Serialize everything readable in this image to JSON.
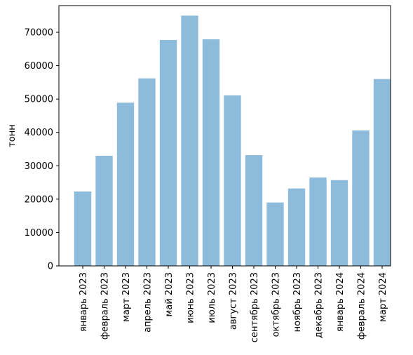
{
  "chart_data": {
    "type": "bar",
    "title": "",
    "xlabel": "",
    "ylabel": "тонн",
    "ylim": [
      0,
      78000
    ],
    "yticks": [
      0,
      10000,
      20000,
      30000,
      40000,
      50000,
      60000,
      70000
    ],
    "grid": false,
    "bar_color": "#8dbbdb",
    "categories": [
      "январь 2023",
      "февраль 2023",
      "март 2023",
      "апрель 2023",
      "май 2023",
      "июнь 2023",
      "июль 2023",
      "август 2023",
      "сентябрь 2023",
      "октябрь 2023",
      "ноябрь 2023",
      "декабрь 2023",
      "январь 2024",
      "февраль 2024",
      "март 2024"
    ],
    "values": [
      22300,
      33000,
      48900,
      56200,
      67700,
      75000,
      67900,
      51100,
      33200,
      19000,
      23200,
      26500,
      25700,
      40600,
      56000
    ]
  }
}
